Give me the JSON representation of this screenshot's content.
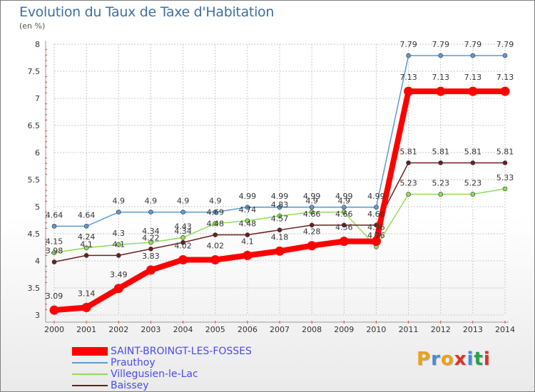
{
  "title": "Evolution du Taux de Taxe d'Habitation",
  "unit": "(en %)",
  "chart_data": {
    "type": "line",
    "title": "Evolution du Taux de Taxe d'Habitation",
    "ylabel": "(en %)",
    "xlabel": "",
    "ylim": [
      3,
      8
    ],
    "y_ticks": [
      "3",
      "3.5",
      "4",
      "4.5",
      "5",
      "5.5",
      "6",
      "6.5",
      "7",
      "7.5",
      "8"
    ],
    "x": [
      "2000",
      "2001",
      "2002",
      "2003",
      "2004",
      "2005",
      "2006",
      "2007",
      "2008",
      "2009",
      "2010",
      "2011",
      "2012",
      "2013",
      "2014"
    ],
    "grid": true,
    "legend_position": "bottom-left",
    "series": [
      {
        "name": "Prauthoy",
        "color": "#5a9bd4",
        "values": [
          4.64,
          4.64,
          4.9,
          4.9,
          4.9,
          4.9,
          4.99,
          4.99,
          4.99,
          4.99,
          4.99,
          7.79,
          7.79,
          7.79,
          7.79
        ],
        "labels": [
          "4.64",
          "4.64",
          "4.9",
          "4.9",
          "4.9",
          "4.9",
          "4.99",
          "4.99",
          "4.99",
          "4.99",
          "4.99",
          "7.79",
          "7.79",
          "7.79",
          "7.79"
        ]
      },
      {
        "name": "Villegusien-le-Lac",
        "color": "#8fdd55",
        "values": [
          4.15,
          4.24,
          4.3,
          4.34,
          4.43,
          4.69,
          4.74,
          4.83,
          4.9,
          4.9,
          4.26,
          5.23,
          5.23,
          5.23,
          5.33
        ],
        "labels": [
          "4.15",
          "4.24",
          "4.3",
          "4.34",
          "4.43",
          "4.69",
          "4.74",
          "4.83",
          "4.9",
          "4.9",
          "4.26",
          "5.23",
          "5.23",
          "5.23",
          "5.33"
        ]
      },
      {
        "name": "Baissey",
        "color": "#6b1f1f",
        "values": [
          3.98,
          4.1,
          4.1,
          4.22,
          4.34,
          4.48,
          4.48,
          4.57,
          4.66,
          4.66,
          4.66,
          5.81,
          5.81,
          5.81,
          5.81
        ],
        "labels": [
          "3.98",
          "4.1",
          "4.1",
          "4.22",
          "4.34",
          "4.48",
          "4.48",
          "4.57",
          "4.66",
          "4.66",
          "4.66",
          "5.81",
          "5.81",
          "5.81",
          "5.81"
        ]
      },
      {
        "name": "SAINT-BROINGT-LES-FOSSES",
        "color": "#ff0000",
        "emphasis": true,
        "values": [
          3.09,
          3.14,
          3.49,
          3.83,
          4.02,
          4.02,
          4.1,
          4.18,
          4.28,
          4.36,
          4.36,
          7.13,
          7.13,
          7.13,
          7.13
        ],
        "labels": [
          "3.09",
          "3.14",
          "3.49",
          "3.83",
          "4.02",
          "4.02",
          "4.1",
          "4.18",
          "4.28",
          "4.36",
          "4.36",
          "7.13",
          "7.13",
          "7.13",
          "7.13"
        ]
      }
    ]
  },
  "legend": [
    {
      "label": "SAINT-BROINGT-LES-FOSSES",
      "color": "#ff0000"
    },
    {
      "label": "Prauthoy",
      "color": "#5a9bd4"
    },
    {
      "label": "Villegusien-le-Lac",
      "color": "#8fdd55"
    },
    {
      "label": "Baissey",
      "color": "#6b1f1f"
    }
  ],
  "logo": {
    "letters": [
      "P",
      "r",
      "o",
      "x",
      "i",
      "t",
      "i"
    ],
    "colors": [
      "#e8a21c",
      "#4a8ad4",
      "#e8a21c",
      "#d9332b",
      "#4a8ad4",
      "#2aa14b",
      "#d9332b"
    ]
  }
}
